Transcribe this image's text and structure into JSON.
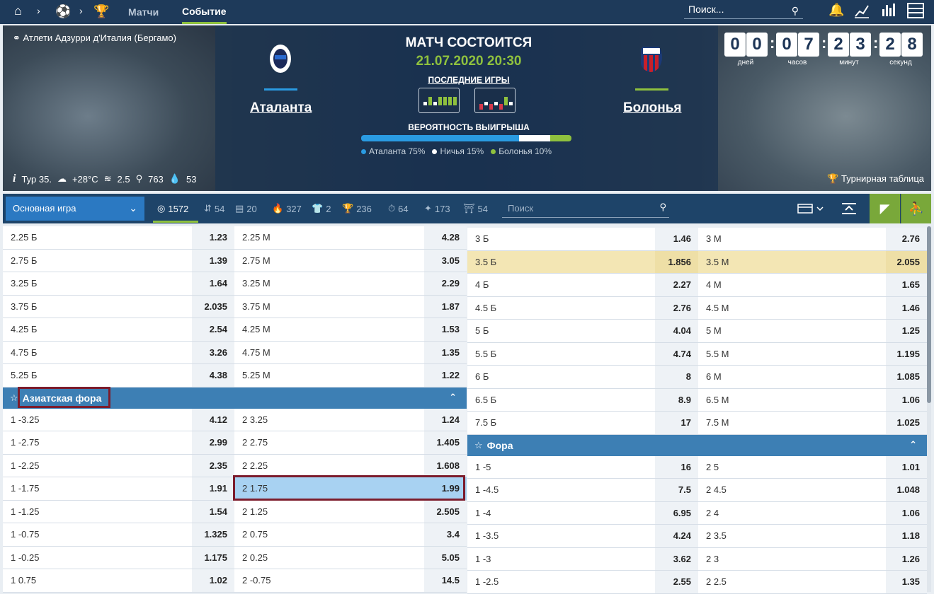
{
  "nav": {
    "crumbs": [
      "Матчи",
      "Событие"
    ],
    "search_placeholder": "Поиск..."
  },
  "match": {
    "league": "Атлети Адзурри д'Италия (Бергамо)",
    "status": "МАТЧ СОСТОИТСЯ",
    "datetime": "21.07.2020 20:30",
    "home": "Аталанта",
    "away": "Болонья",
    "last_games_label": "ПОСЛЕДНИЕ ИГРЫ",
    "win_prob_label": "ВЕРОЯТНОСТЬ ВЫИГРЫША",
    "prob": [
      {
        "label": "Аталанта 75%",
        "value": 75,
        "color": "#2a9be2"
      },
      {
        "label": "Ничья 15%",
        "value": 15,
        "color": "#ffffff"
      },
      {
        "label": "Болонья 10%",
        "value": 10,
        "color": "#8fc13e"
      }
    ],
    "home_color": "#2a9be2",
    "away_color": "#8fc13e"
  },
  "timer": {
    "digits": [
      "0",
      "0",
      "0",
      "7",
      "2",
      "3",
      "2",
      "8"
    ],
    "labels": [
      "дней",
      "часов",
      "минут",
      "секунд"
    ]
  },
  "weather": {
    "tour": "Тур 35.",
    "temp": "+28°C",
    "wind": "2.5",
    "pressure": "763",
    "humidity": "53"
  },
  "standings_label": "Турнирная таблица",
  "filter": {
    "main_select": "Основная игра",
    "items": [
      {
        "icon": "target-icon",
        "count": "1572"
      },
      {
        "icon": "up-down-icon",
        "count": "54"
      },
      {
        "icon": "bars-icon",
        "count": "20"
      },
      {
        "icon": "fire-icon",
        "count": "327"
      },
      {
        "icon": "shirt-icon",
        "count": "2"
      },
      {
        "icon": "cup-icon",
        "count": "236"
      },
      {
        "icon": "stopwatch-icon",
        "count": "64"
      },
      {
        "icon": "wand-icon",
        "count": "173"
      },
      {
        "icon": "gate-icon",
        "count": "54"
      }
    ],
    "search_placeholder": "Поиск"
  },
  "left_top_rows": [
    {
      "a": "2.25 Б",
      "ao": "1.23",
      "b": "2.25 М",
      "bo": "4.28"
    },
    {
      "a": "2.75 Б",
      "ao": "1.39",
      "b": "2.75 М",
      "bo": "3.05"
    },
    {
      "a": "3.25 Б",
      "ao": "1.64",
      "b": "3.25 М",
      "bo": "2.29"
    },
    {
      "a": "3.75 Б",
      "ao": "2.035",
      "b": "3.75 М",
      "bo": "1.87"
    },
    {
      "a": "4.25 Б",
      "ao": "2.54",
      "b": "4.25 М",
      "bo": "1.53"
    },
    {
      "a": "4.75 Б",
      "ao": "3.26",
      "b": "4.75 М",
      "bo": "1.35"
    },
    {
      "a": "5.25 Б",
      "ao": "4.38",
      "b": "5.25 М",
      "bo": "1.22"
    }
  ],
  "asian_title": "Азиатская фора",
  "asian_rows": [
    {
      "a": "1 -3.25",
      "ao": "4.12",
      "b": "2 3.25",
      "bo": "1.24"
    },
    {
      "a": "1 -2.75",
      "ao": "2.99",
      "b": "2 2.75",
      "bo": "1.405"
    },
    {
      "a": "1 -2.25",
      "ao": "2.35",
      "b": "2 2.25",
      "bo": "1.608"
    },
    {
      "a": "1 -1.75",
      "ao": "1.91",
      "b": "2 1.75",
      "bo": "1.99"
    },
    {
      "a": "1 -1.25",
      "ao": "1.54",
      "b": "2 1.25",
      "bo": "2.505"
    },
    {
      "a": "1 -0.75",
      "ao": "1.325",
      "b": "2 0.75",
      "bo": "3.4"
    },
    {
      "a": "1 -0.25",
      "ao": "1.175",
      "b": "2 0.25",
      "bo": "5.05"
    },
    {
      "a": "1 0.75",
      "ao": "1.02",
      "b": "2 -0.75",
      "bo": "14.5"
    }
  ],
  "right_top_rows": [
    {
      "a": "3 Б",
      "ao": "1.46",
      "b": "3 М",
      "bo": "2.76"
    },
    {
      "a": "3.5 Б",
      "ao": "1.856",
      "b": "3.5 М",
      "bo": "2.055"
    },
    {
      "a": "4 Б",
      "ao": "2.27",
      "b": "4 М",
      "bo": "1.65"
    },
    {
      "a": "4.5 Б",
      "ao": "2.76",
      "b": "4.5 М",
      "bo": "1.46"
    },
    {
      "a": "5 Б",
      "ao": "4.04",
      "b": "5 М",
      "bo": "1.25"
    },
    {
      "a": "5.5 Б",
      "ao": "4.74",
      "b": "5.5 М",
      "bo": "1.195"
    },
    {
      "a": "6 Б",
      "ao": "8",
      "b": "6 М",
      "bo": "1.085"
    },
    {
      "a": "6.5 Б",
      "ao": "8.9",
      "b": "6.5 М",
      "bo": "1.06"
    },
    {
      "a": "7.5 Б",
      "ao": "17",
      "b": "7.5 М",
      "bo": "1.025"
    }
  ],
  "fora_title": "Фора",
  "fora_rows": [
    {
      "a": "1 -5",
      "ao": "16",
      "b": "2 5",
      "bo": "1.01"
    },
    {
      "a": "1 -4.5",
      "ao": "7.5",
      "b": "2 4.5",
      "bo": "1.048"
    },
    {
      "a": "1 -4",
      "ao": "6.95",
      "b": "2 4",
      "bo": "1.06"
    },
    {
      "a": "1 -3.5",
      "ao": "4.24",
      "b": "2 3.5",
      "bo": "1.18"
    },
    {
      "a": "1 -3",
      "ao": "3.62",
      "b": "2 3",
      "bo": "1.26"
    },
    {
      "a": "1 -2.5",
      "ao": "2.55",
      "b": "2 2.5",
      "bo": "1.35"
    }
  ]
}
